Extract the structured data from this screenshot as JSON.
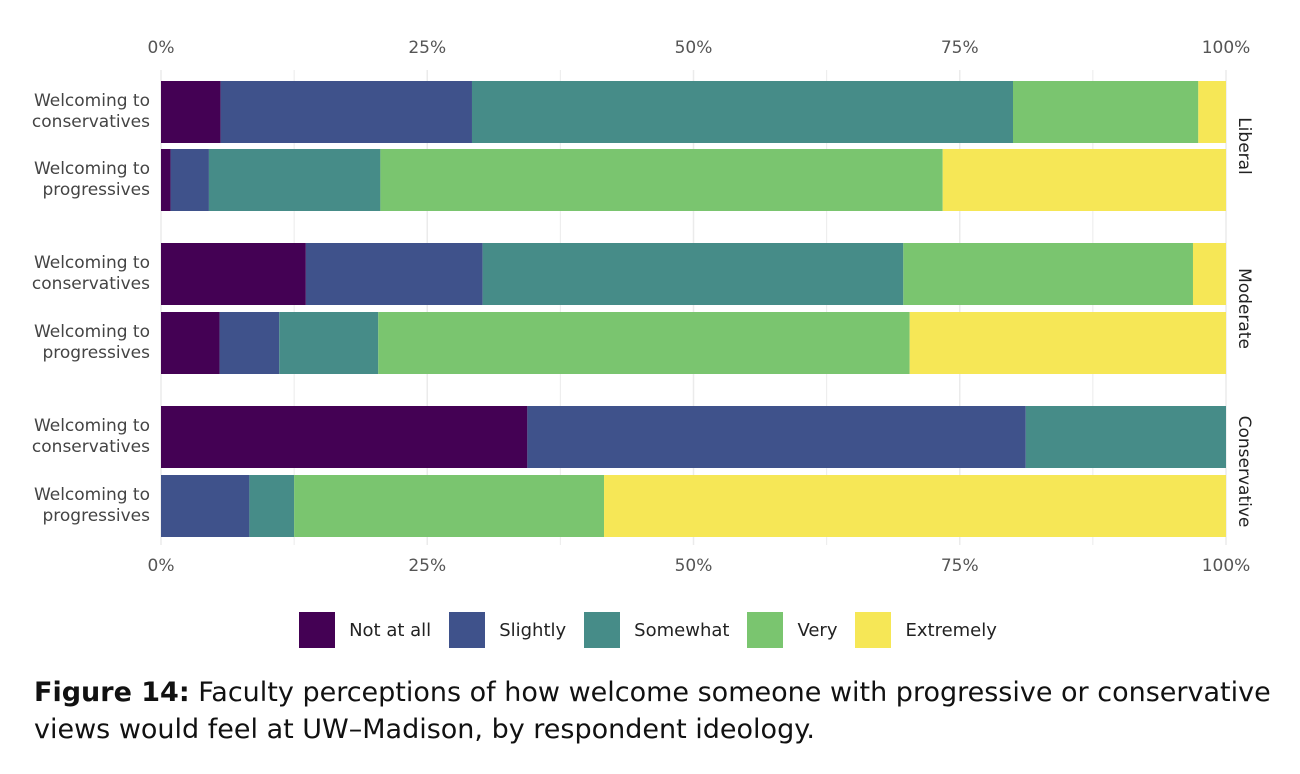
{
  "chart_data": {
    "type": "bar",
    "orientation": "horizontal-stacked-100",
    "xlim": [
      0,
      100
    ],
    "x_ticks": [
      "0%",
      "25%",
      "50%",
      "75%",
      "100%"
    ],
    "grid": true,
    "legend_position": "bottom",
    "categories_labels": [
      [
        "Welcoming to",
        "conservatives"
      ],
      [
        "Welcoming to",
        "progressives"
      ]
    ],
    "levels": [
      "Not at all",
      "Slightly",
      "Somewhat",
      "Very",
      "Extremely"
    ],
    "colors": [
      "#440154",
      "#3f528b",
      "#468c88",
      "#7ac56f",
      "#f6e756"
    ],
    "facets": [
      {
        "name": "Liberal",
        "rows": [
          {
            "label": "Welcoming to conservatives",
            "values": [
              5.6,
              23.6,
              50.8,
              17.4,
              2.6
            ]
          },
          {
            "label": "Welcoming to progressives",
            "values": [
              0.9,
              3.6,
              16.1,
              52.8,
              26.6
            ]
          }
        ]
      },
      {
        "name": "Moderate",
        "rows": [
          {
            "label": "Welcoming to conservatives",
            "values": [
              13.6,
              16.6,
              39.5,
              27.2,
              3.1
            ]
          },
          {
            "label": "Welcoming to progressives",
            "values": [
              5.5,
              5.6,
              9.3,
              49.9,
              29.7
            ]
          }
        ]
      },
      {
        "name": "Conservative",
        "rows": [
          {
            "label": "Welcoming to conservatives",
            "values": [
              34.4,
              46.8,
              18.8,
              0,
              0
            ]
          },
          {
            "label": "Welcoming to progressives",
            "values": [
              0,
              8.3,
              4.2,
              29.1,
              58.4
            ]
          }
        ]
      }
    ]
  },
  "caption": {
    "label": "Figure 14:",
    "text": " Faculty perceptions of how welcome someone with progressive or conservative views would feel at UW–Madison, by respondent ideology."
  }
}
